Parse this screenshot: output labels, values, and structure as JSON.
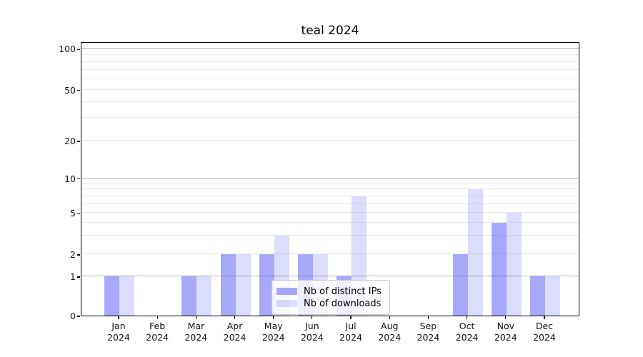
{
  "title": "teal 2024",
  "legend": {
    "items": [
      {
        "label": "Nb of distinct IPs",
        "series": "ips"
      },
      {
        "label": "Nb of downloads",
        "series": "downloads"
      }
    ]
  },
  "colors": {
    "bar_ips": "rgba(88,88,245,0.52)",
    "bar_downloads": "rgba(88,88,245,0.21)",
    "grid_major": "#b1b1b1",
    "grid_minor": "#e8e8e8",
    "spine": "#000000",
    "legend_border": "#cccccc",
    "legend_bg": "rgba(255,255,255,0.8)"
  },
  "chart_data": {
    "type": "bar",
    "title": "teal 2024",
    "categories": [
      "Jan",
      "Feb",
      "Mar",
      "Apr",
      "May",
      "Jun",
      "Jul",
      "Aug",
      "Sep",
      "Oct",
      "Nov",
      "Dec"
    ],
    "year_label": "2024",
    "series": [
      {
        "name": "Nb of distinct IPs",
        "values": [
          1,
          0,
          1,
          2,
          2,
          2,
          1,
          0,
          0,
          2,
          4,
          1
        ]
      },
      {
        "name": "Nb of downloads",
        "values": [
          1,
          0,
          1,
          2,
          3,
          2,
          7,
          0,
          0,
          8,
          5,
          1
        ]
      }
    ],
    "xlabel": "",
    "ylabel": "",
    "y_tick_values": [
      0,
      1,
      2,
      5,
      10,
      20,
      50,
      100
    ],
    "y_tick_labels": [
      "0",
      "1",
      "2",
      "5",
      "10",
      "20",
      "50",
      "100"
    ],
    "y_major_grid_values": [
      1,
      10,
      100
    ],
    "y_minor_grid_values": [
      2,
      3,
      4,
      5,
      6,
      7,
      8,
      9,
      20,
      30,
      40,
      50,
      60,
      70,
      80,
      90
    ],
    "ylim": [
      0,
      112
    ],
    "grid": true,
    "legend_position": "lower center",
    "y_scale": "custom log-like",
    "y_scale_anchors": [
      [
        0,
        0
      ],
      [
        1,
        0.1432
      ],
      [
        2,
        0.224
      ],
      [
        5,
        0.3742
      ],
      [
        10,
        0.5008
      ],
      [
        20,
        0.638
      ],
      [
        50,
        0.8242
      ],
      [
        100,
        0.9727
      ]
    ]
  }
}
